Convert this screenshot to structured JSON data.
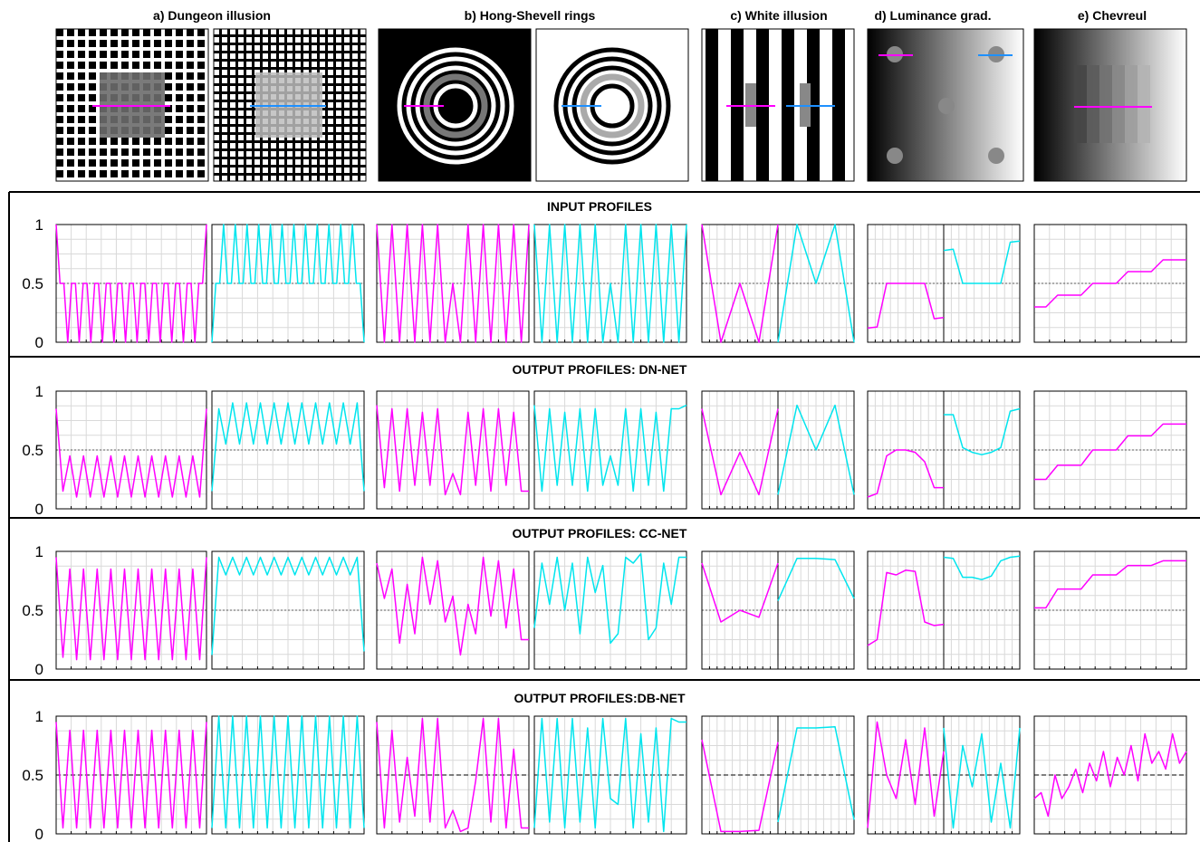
{
  "figure": {
    "panel_titles": [
      "a) Dungeon illusion",
      "b) Hong-Shevell rings",
      "c) White illusion",
      "d) Luminance grad.",
      "e) Chevreul"
    ],
    "y_ticks": [
      "0",
      "0.5",
      "1"
    ],
    "colors": {
      "magenta": "#ff00ff",
      "cyan": "#00e5ee",
      "blue_line": "#1e90ff",
      "grid": "#d9d9d9",
      "frame": "#000000"
    }
  },
  "chart_data": {
    "type": "line",
    "ylim": [
      0,
      1
    ],
    "reference_line": 0.5,
    "grid": true,
    "rows": [
      {
        "title": "INPUT PROFILES",
        "panels": [
          {
            "series": [
              {
                "color": "magenta",
                "values": [
                  1,
                  0.5,
                  0.5,
                  0,
                  0.5,
                  0.5,
                  0,
                  0.5,
                  0.5,
                  0,
                  0.5,
                  0.5,
                  0,
                  0.5,
                  0.5,
                  0,
                  0.5,
                  0.5,
                  0,
                  0.5,
                  0.5,
                  0,
                  0.5,
                  0.5,
                  0,
                  0.5,
                  0.5,
                  0,
                  0.5,
                  0.5,
                  0,
                  0.5,
                  0.5,
                  0,
                  0.5,
                  0.5,
                  0,
                  0.5,
                  0.5,
                  1
                ]
              },
              {
                "color": "cyan",
                "values": [
                  0,
                  0.5,
                  0.5,
                  1,
                  0.5,
                  0.5,
                  1,
                  0.5,
                  0.5,
                  1,
                  0.5,
                  0.5,
                  1,
                  0.5,
                  0.5,
                  1,
                  0.5,
                  0.5,
                  1,
                  0.5,
                  0.5,
                  1,
                  0.5,
                  0.5,
                  1,
                  0.5,
                  0.5,
                  1,
                  0.5,
                  0.5,
                  1,
                  0.5,
                  0.5,
                  1,
                  0.5,
                  0.5,
                  1,
                  0.5,
                  0.5,
                  0
                ]
              }
            ]
          },
          {
            "series": [
              {
                "color": "magenta",
                "values": [
                  1,
                  0,
                  1,
                  0,
                  1,
                  0,
                  1,
                  0,
                  1,
                  0,
                  0.5,
                  0,
                  1,
                  0,
                  1,
                  0,
                  1,
                  0,
                  1,
                  0,
                  1
                ]
              },
              {
                "color": "cyan",
                "values": [
                  1,
                  0,
                  1,
                  0,
                  1,
                  0,
                  1,
                  0,
                  1,
                  0,
                  0.5,
                  0,
                  1,
                  0,
                  1,
                  0,
                  1,
                  0,
                  1,
                  0,
                  1
                ]
              }
            ]
          },
          {
            "series": [
              {
                "color": "magenta",
                "values": [
                  1,
                  0,
                  0.5,
                  0,
                  1
                ]
              },
              {
                "color": "cyan",
                "values": [
                  0,
                  1,
                  0.5,
                  1,
                  0
                ]
              }
            ]
          },
          {
            "series": [
              {
                "color": "magenta",
                "values": [
                  0.12,
                  0.13,
                  0.5,
                  0.5,
                  0.5,
                  0.5,
                  0.5,
                  0.2,
                  0.21
                ]
              },
              {
                "color": "cyan",
                "values": [
                  0.78,
                  0.79,
                  0.5,
                  0.5,
                  0.5,
                  0.5,
                  0.5,
                  0.85,
                  0.86
                ]
              }
            ]
          },
          {
            "series": [
              {
                "color": "magenta",
                "values": [
                  0.3,
                  0.3,
                  0.4,
                  0.4,
                  0.4,
                  0.5,
                  0.5,
                  0.5,
                  0.6,
                  0.6,
                  0.6,
                  0.7,
                  0.7,
                  0.7
                ]
              }
            ]
          }
        ]
      },
      {
        "title": "OUTPUT PROFILES: DN-NET",
        "panels": [
          {
            "series": [
              {
                "color": "magenta",
                "values": [
                  0.85,
                  0.15,
                  0.45,
                  0.1,
                  0.45,
                  0.1,
                  0.45,
                  0.1,
                  0.45,
                  0.1,
                  0.45,
                  0.1,
                  0.45,
                  0.1,
                  0.45,
                  0.1,
                  0.45,
                  0.1,
                  0.45,
                  0.1,
                  0.45,
                  0.1,
                  0.85
                ]
              },
              {
                "color": "cyan",
                "values": [
                  0.15,
                  0.85,
                  0.55,
                  0.9,
                  0.55,
                  0.9,
                  0.55,
                  0.9,
                  0.55,
                  0.9,
                  0.55,
                  0.9,
                  0.55,
                  0.9,
                  0.55,
                  0.9,
                  0.55,
                  0.9,
                  0.55,
                  0.9,
                  0.55,
                  0.9,
                  0.15
                ]
              }
            ]
          },
          {
            "series": [
              {
                "color": "magenta",
                "values": [
                  0.88,
                  0.18,
                  0.85,
                  0.15,
                  0.85,
                  0.2,
                  0.82,
                  0.2,
                  0.85,
                  0.12,
                  0.3,
                  0.12,
                  0.82,
                  0.2,
                  0.85,
                  0.15,
                  0.85,
                  0.2,
                  0.82,
                  0.15,
                  0.15
                ]
              },
              {
                "color": "cyan",
                "values": [
                  0.88,
                  0.15,
                  0.85,
                  0.2,
                  0.82,
                  0.2,
                  0.85,
                  0.15,
                  0.85,
                  0.2,
                  0.45,
                  0.2,
                  0.85,
                  0.15,
                  0.85,
                  0.2,
                  0.82,
                  0.15,
                  0.85,
                  0.85,
                  0.88
                ]
              }
            ]
          },
          {
            "series": [
              {
                "color": "magenta",
                "values": [
                  0.85,
                  0.12,
                  0.48,
                  0.12,
                  0.85
                ]
              },
              {
                "color": "cyan",
                "values": [
                  0.12,
                  0.88,
                  0.5,
                  0.88,
                  0.12
                ]
              }
            ]
          },
          {
            "series": [
              {
                "color": "magenta",
                "values": [
                  0.1,
                  0.13,
                  0.45,
                  0.5,
                  0.5,
                  0.48,
                  0.4,
                  0.18,
                  0.18
                ]
              },
              {
                "color": "cyan",
                "values": [
                  0.8,
                  0.8,
                  0.52,
                  0.48,
                  0.46,
                  0.48,
                  0.52,
                  0.83,
                  0.85
                ]
              }
            ]
          },
          {
            "series": [
              {
                "color": "magenta",
                "values": [
                  0.25,
                  0.25,
                  0.37,
                  0.37,
                  0.37,
                  0.5,
                  0.5,
                  0.5,
                  0.62,
                  0.62,
                  0.62,
                  0.72,
                  0.72,
                  0.72
                ]
              }
            ]
          }
        ]
      },
      {
        "title": "OUTPUT PROFILES: CC-NET",
        "panels": [
          {
            "series": [
              {
                "color": "magenta",
                "values": [
                  0.95,
                  0.1,
                  0.85,
                  0.08,
                  0.85,
                  0.08,
                  0.85,
                  0.08,
                  0.85,
                  0.08,
                  0.85,
                  0.08,
                  0.85,
                  0.08,
                  0.85,
                  0.08,
                  0.85,
                  0.08,
                  0.85,
                  0.08,
                  0.85,
                  0.08,
                  0.95
                ]
              },
              {
                "color": "cyan",
                "values": [
                  0.12,
                  0.95,
                  0.8,
                  0.95,
                  0.8,
                  0.95,
                  0.8,
                  0.95,
                  0.8,
                  0.95,
                  0.8,
                  0.95,
                  0.8,
                  0.95,
                  0.8,
                  0.95,
                  0.8,
                  0.95,
                  0.8,
                  0.95,
                  0.8,
                  0.95,
                  0.15
                ]
              }
            ]
          },
          {
            "series": [
              {
                "color": "magenta",
                "values": [
                  0.9,
                  0.6,
                  0.85,
                  0.22,
                  0.72,
                  0.3,
                  0.95,
                  0.55,
                  0.92,
                  0.4,
                  0.62,
                  0.12,
                  0.55,
                  0.3,
                  0.95,
                  0.45,
                  0.92,
                  0.35,
                  0.85,
                  0.25,
                  0.25
                ]
              },
              {
                "color": "cyan",
                "values": [
                  0.35,
                  0.9,
                  0.55,
                  0.95,
                  0.5,
                  0.9,
                  0.3,
                  0.95,
                  0.65,
                  0.88,
                  0.22,
                  0.3,
                  0.95,
                  0.9,
                  0.98,
                  0.25,
                  0.35,
                  0.9,
                  0.55,
                  0.95,
                  0.95
                ]
              }
            ]
          },
          {
            "series": [
              {
                "color": "magenta",
                "values": [
                  0.9,
                  0.4,
                  0.5,
                  0.44,
                  0.9
                ]
              },
              {
                "color": "cyan",
                "values": [
                  0.58,
                  0.94,
                  0.94,
                  0.93,
                  0.6
                ]
              }
            ]
          },
          {
            "series": [
              {
                "color": "magenta",
                "values": [
                  0.2,
                  0.25,
                  0.82,
                  0.8,
                  0.84,
                  0.83,
                  0.4,
                  0.37,
                  0.38
                ]
              },
              {
                "color": "cyan",
                "values": [
                  0.95,
                  0.94,
                  0.78,
                  0.78,
                  0.76,
                  0.79,
                  0.92,
                  0.95,
                  0.96
                ]
              }
            ]
          },
          {
            "series": [
              {
                "color": "magenta",
                "values": [
                  0.52,
                  0.52,
                  0.68,
                  0.68,
                  0.68,
                  0.8,
                  0.8,
                  0.8,
                  0.88,
                  0.88,
                  0.88,
                  0.92,
                  0.92,
                  0.92
                ]
              }
            ]
          }
        ]
      },
      {
        "title": "OUTPUT PROFILES:DB-NET",
        "panels": [
          {
            "series": [
              {
                "color": "magenta",
                "values": [
                  0.95,
                  0.05,
                  0.88,
                  0.05,
                  0.88,
                  0.05,
                  0.88,
                  0.05,
                  0.88,
                  0.05,
                  0.88,
                  0.05,
                  0.88,
                  0.05,
                  0.88,
                  0.05,
                  0.88,
                  0.05,
                  0.88,
                  0.05,
                  0.88,
                  0.05,
                  0.95
                ]
              },
              {
                "color": "cyan",
                "values": [
                  0.05,
                  1,
                  0.05,
                  1,
                  0.05,
                  1,
                  0.05,
                  1,
                  0.05,
                  1,
                  0.05,
                  1,
                  0.05,
                  1,
                  0.05,
                  1,
                  0.05,
                  1,
                  0.05,
                  1,
                  0.05,
                  1,
                  0.05
                ]
              }
            ]
          },
          {
            "series": [
              {
                "color": "magenta",
                "values": [
                  0.95,
                  0.05,
                  0.88,
                  0.1,
                  0.65,
                  0.15,
                  0.98,
                  0.1,
                  0.98,
                  0.05,
                  0.2,
                  0.02,
                  0.05,
                  0.45,
                  0.98,
                  0.1,
                  0.98,
                  0.05,
                  0.72,
                  0.05,
                  0.05
                ]
              },
              {
                "color": "cyan",
                "values": [
                  0.05,
                  0.98,
                  0.1,
                  0.98,
                  0.05,
                  0.98,
                  0.1,
                  0.9,
                  0.05,
                  0.98,
                  0.3,
                  0.25,
                  0.98,
                  0.05,
                  0.85,
                  0.1,
                  0.9,
                  0.02,
                  0.98,
                  0.95,
                  0.95
                ]
              }
            ]
          },
          {
            "series": [
              {
                "color": "magenta",
                "values": [
                  0.8,
                  0.02,
                  0.02,
                  0.03,
                  0.78
                ]
              },
              {
                "color": "cyan",
                "values": [
                  0.1,
                  0.9,
                  0.9,
                  0.91,
                  0.12
                ]
              }
            ]
          },
          {
            "series": [
              {
                "color": "magenta",
                "values": [
                  0.05,
                  0.95,
                  0.5,
                  0.3,
                  0.8,
                  0.25,
                  0.9,
                  0.15,
                  0.7
                ]
              },
              {
                "color": "cyan",
                "values": [
                  0.9,
                  0.05,
                  0.75,
                  0.4,
                  0.85,
                  0.1,
                  0.6,
                  0.05,
                  0.9
                ]
              }
            ]
          },
          {
            "series": [
              {
                "color": "magenta",
                "values": [
                  0.3,
                  0.35,
                  0.15,
                  0.5,
                  0.3,
                  0.4,
                  0.55,
                  0.35,
                  0.6,
                  0.45,
                  0.7,
                  0.4,
                  0.65,
                  0.5,
                  0.75,
                  0.45,
                  0.85,
                  0.6,
                  0.7,
                  0.55,
                  0.85,
                  0.6,
                  0.7
                ]
              }
            ]
          }
        ]
      }
    ]
  }
}
